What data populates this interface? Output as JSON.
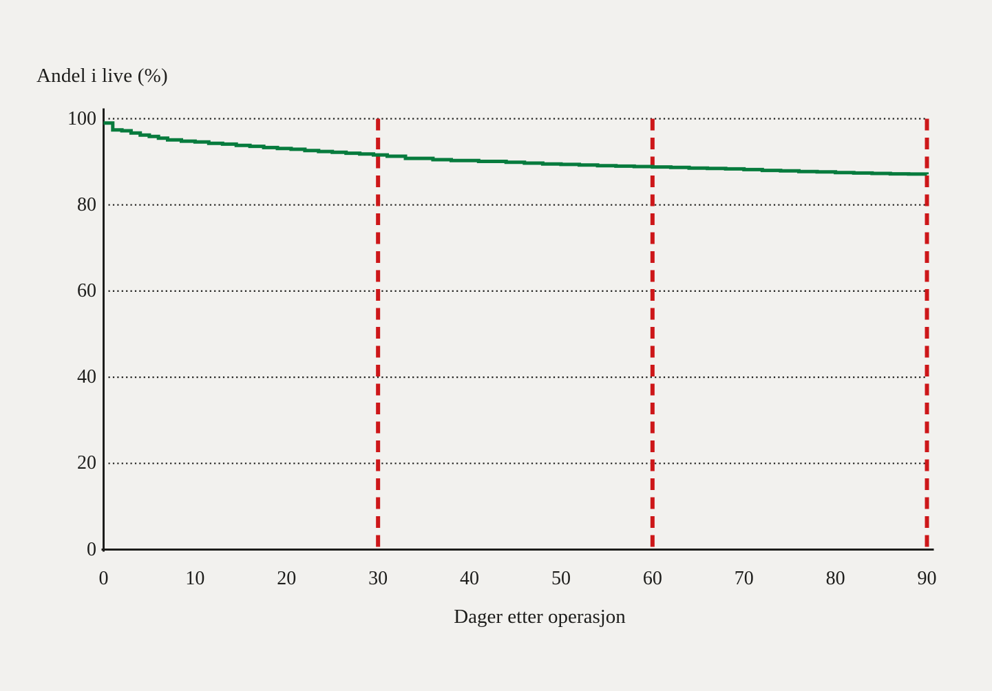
{
  "chart_data": {
    "type": "line",
    "subtype": "kaplan-meier-step-curve",
    "title": "Andel i live (%)",
    "xlabel": "Dager etter operasjon",
    "ylabel": "Andel i live (%)",
    "xlim": [
      0,
      90
    ],
    "ylim": [
      0,
      100
    ],
    "x_ticks": [
      0,
      10,
      20,
      30,
      40,
      50,
      60,
      70,
      80,
      90
    ],
    "y_ticks": [
      0,
      20,
      40,
      60,
      80,
      100
    ],
    "grid": {
      "horizontal_dotted_at": [
        20,
        40,
        60,
        80,
        100
      ]
    },
    "reference_lines": {
      "vertical_dashed_at_x": [
        30,
        60,
        90
      ]
    },
    "legend": "none",
    "series": [
      {
        "name": "Andel i live",
        "step": true,
        "points": [
          [
            0,
            99.0
          ],
          [
            1,
            97.4
          ],
          [
            2,
            97.2
          ],
          [
            3,
            96.7
          ],
          [
            4,
            96.2
          ],
          [
            5,
            95.9
          ],
          [
            6,
            95.5
          ],
          [
            7,
            95.1
          ],
          [
            8.5,
            94.8
          ],
          [
            10,
            94.6
          ],
          [
            11.5,
            94.3
          ],
          [
            13,
            94.1
          ],
          [
            14.5,
            93.8
          ],
          [
            16,
            93.6
          ],
          [
            17.5,
            93.3
          ],
          [
            19,
            93.1
          ],
          [
            20.5,
            92.9
          ],
          [
            22,
            92.6
          ],
          [
            23.5,
            92.4
          ],
          [
            25,
            92.2
          ],
          [
            26.5,
            92.0
          ],
          [
            28,
            91.8
          ],
          [
            29.5,
            91.6
          ],
          [
            31,
            91.3
          ],
          [
            33,
            90.8
          ],
          [
            36,
            90.5
          ],
          [
            38,
            90.3
          ],
          [
            41,
            90.1
          ],
          [
            44,
            89.9
          ],
          [
            46,
            89.7
          ],
          [
            48,
            89.5
          ],
          [
            50,
            89.4
          ],
          [
            52,
            89.25
          ],
          [
            54,
            89.1
          ],
          [
            56,
            89.0
          ],
          [
            58,
            88.9
          ],
          [
            60,
            88.8
          ],
          [
            62,
            88.7
          ],
          [
            64,
            88.55
          ],
          [
            66,
            88.45
          ],
          [
            68,
            88.35
          ],
          [
            70,
            88.2
          ],
          [
            72,
            88.0
          ],
          [
            74,
            87.9
          ],
          [
            76,
            87.75
          ],
          [
            78,
            87.65
          ],
          [
            80,
            87.5
          ],
          [
            82,
            87.4
          ],
          [
            84,
            87.3
          ],
          [
            86,
            87.2
          ],
          [
            88,
            87.15
          ],
          [
            90,
            87.1
          ]
        ],
        "values_at_reference_lines": {
          "30": 91.5,
          "60": 88.8,
          "90": 87.1
        }
      }
    ],
    "colors": {
      "line": "#077b3d",
      "reference_line": "#cd1719",
      "axis": "#1d1d1b",
      "grid_dots": "#1d1d1b",
      "text": "#1d1d1b",
      "background": "#f2f1ee"
    }
  }
}
